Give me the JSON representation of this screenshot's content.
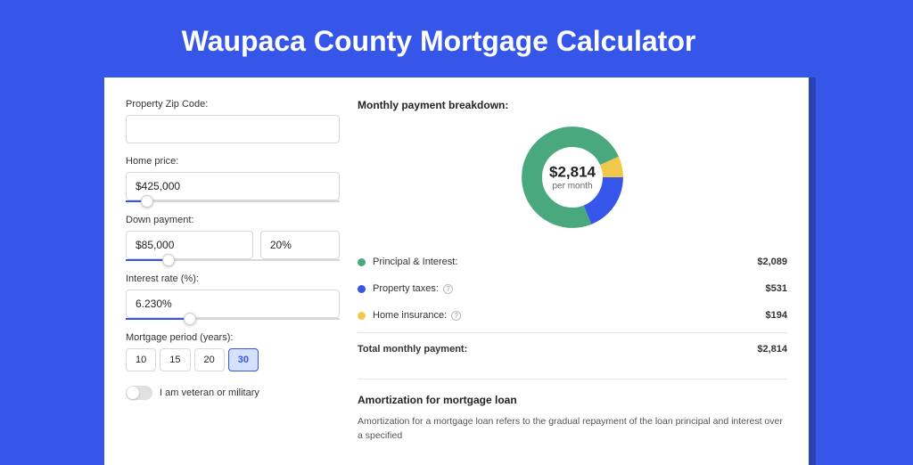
{
  "page_title": "Waupaca County Mortgage Calculator",
  "colors": {
    "page_bg": "#3556e8",
    "card_bg": "#ffffff",
    "accent": "#3556e8",
    "shadow": "#2a43b0"
  },
  "inputs": {
    "zip": {
      "label": "Property Zip Code:",
      "value": ""
    },
    "home_price": {
      "label": "Home price:",
      "value": "$425,000",
      "slider_pct": 10
    },
    "down_payment": {
      "label": "Down payment:",
      "value": "$85,000",
      "pct_value": "20%",
      "slider_pct": 20
    },
    "interest_rate": {
      "label": "Interest rate (%):",
      "value": "6.230%",
      "slider_pct": 30
    },
    "mortgage_period": {
      "label": "Mortgage period (years):",
      "options": [
        "10",
        "15",
        "20",
        "30"
      ],
      "active_index": 3
    },
    "veteran": {
      "label": "I am veteran or military",
      "checked": false
    }
  },
  "breakdown": {
    "title": "Monthly payment breakdown:",
    "donut": {
      "center_value": "$2,814",
      "center_sub": "per month",
      "slices": [
        {
          "label": "Principal & Interest",
          "color": "#4aa87f",
          "value": 2089,
          "pct": 74.2
        },
        {
          "label": "Property taxes",
          "color": "#3556e8",
          "value": 531,
          "pct": 18.9
        },
        {
          "label": "Home insurance",
          "color": "#f0c94a",
          "value": 194,
          "pct": 6.9
        }
      ]
    },
    "legend": [
      {
        "dot_color": "#4aa87f",
        "label": "Principal & Interest:",
        "value": "$2,089",
        "info": false
      },
      {
        "dot_color": "#3556e8",
        "label": "Property taxes:",
        "value": "$531",
        "info": true
      },
      {
        "dot_color": "#f0c94a",
        "label": "Home insurance:",
        "value": "$194",
        "info": true
      }
    ],
    "total": {
      "label": "Total monthly payment:",
      "value": "$2,814"
    }
  },
  "amortization": {
    "title": "Amortization for mortgage loan",
    "text": "Amortization for a mortgage loan refers to the gradual repayment of the loan principal and interest over a specified"
  }
}
